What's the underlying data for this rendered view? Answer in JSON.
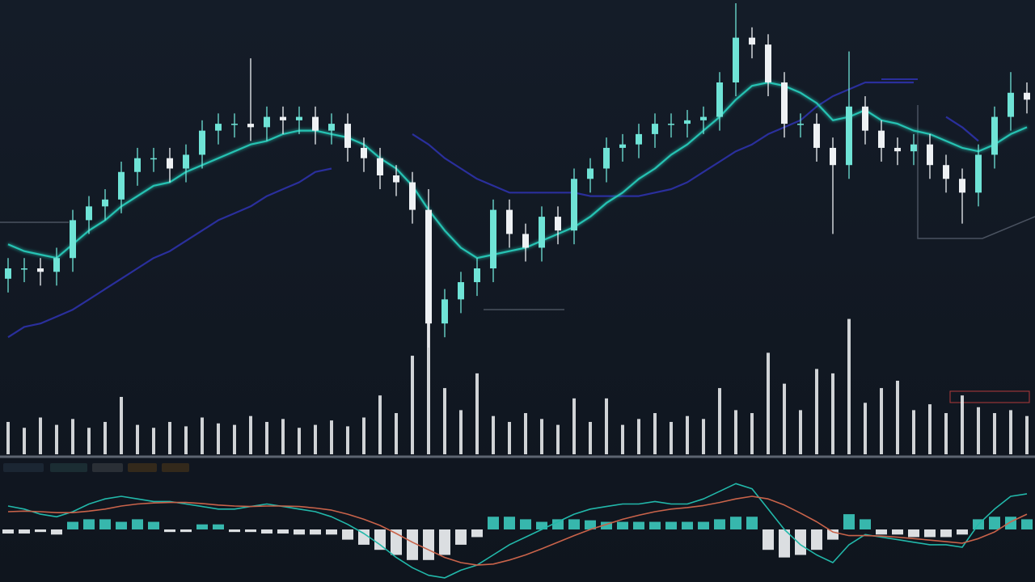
{
  "chart_data": {
    "type": "candlestick",
    "categories": [
      null,
      null,
      null,
      null,
      null,
      null,
      null,
      null,
      null,
      null,
      null,
      null,
      null,
      null,
      null,
      null,
      null,
      null,
      null,
      null,
      null,
      null,
      null,
      null,
      null,
      null,
      null,
      null,
      null,
      null,
      null,
      null,
      null,
      null,
      null,
      null,
      null,
      null,
      null,
      null,
      null,
      null,
      null,
      null,
      null,
      null,
      null,
      null,
      null,
      null,
      null,
      null,
      null,
      null,
      null,
      null,
      null,
      null,
      null,
      null,
      null,
      null,
      null,
      null
    ],
    "open": [
      20,
      23,
      23,
      22,
      26,
      37,
      41,
      43,
      51,
      55,
      55,
      52,
      56,
      63,
      65,
      65,
      64,
      67,
      66,
      67,
      63,
      65,
      58,
      55,
      50,
      48,
      40,
      7,
      14,
      19,
      23,
      40,
      33,
      29,
      38,
      34,
      49,
      52,
      58,
      59,
      62,
      65,
      65,
      66,
      67,
      77,
      90,
      88,
      77,
      65,
      65,
      58,
      53,
      70,
      63,
      58,
      57,
      59,
      53,
      49,
      45,
      56,
      67,
      74
    ],
    "high": [
      26,
      26,
      26,
      29,
      40,
      44,
      46,
      54,
      58,
      58,
      58,
      59,
      66,
      68,
      68,
      84,
      70,
      70,
      70,
      70,
      68,
      68,
      61,
      58,
      53,
      51,
      46,
      17,
      22,
      26,
      43,
      43,
      36,
      41,
      41,
      52,
      55,
      61,
      62,
      65,
      68,
      68,
      69,
      70,
      80,
      100,
      93,
      91,
      80,
      68,
      68,
      61,
      86,
      73,
      66,
      61,
      62,
      62,
      56,
      52,
      59,
      70,
      80,
      77
    ],
    "low": [
      16,
      19,
      18,
      18,
      22,
      33,
      37,
      39,
      47,
      51,
      48,
      48,
      52,
      59,
      61,
      60,
      60,
      62,
      62,
      59,
      59,
      54,
      51,
      46,
      44,
      36,
      0,
      3,
      10,
      15,
      19,
      29,
      25,
      25,
      30,
      30,
      45,
      48,
      54,
      55,
      58,
      61,
      61,
      62,
      63,
      73,
      84,
      73,
      61,
      61,
      54,
      33,
      49,
      59,
      54,
      53,
      53,
      49,
      45,
      36,
      41,
      52,
      63,
      68
    ],
    "close": [
      23,
      23,
      22,
      26,
      37,
      41,
      43,
      51,
      55,
      55,
      52,
      56,
      63,
      65,
      65,
      64,
      67,
      66,
      67,
      63,
      65,
      58,
      55,
      50,
      48,
      40,
      7,
      14,
      19,
      23,
      40,
      33,
      29,
      38,
      34,
      49,
      52,
      58,
      59,
      62,
      65,
      65,
      66,
      67,
      77,
      90,
      88,
      77,
      65,
      65,
      58,
      53,
      70,
      63,
      58,
      57,
      59,
      53,
      49,
      45,
      56,
      67,
      74,
      72
    ],
    "up_color": "#6fe3d6",
    "down_color": "#eef1f4",
    "ylim": [
      0,
      100
    ],
    "lines": [
      {
        "color": "#25c3b3",
        "values": [
          30,
          28,
          27,
          26,
          30,
          34,
          37,
          41,
          44,
          47,
          48,
          51,
          53,
          55,
          57,
          59,
          60,
          62,
          63,
          63,
          62,
          61,
          59,
          55,
          52,
          47,
          40,
          34,
          29,
          26,
          27,
          28,
          29,
          31,
          33,
          35,
          38,
          42,
          45,
          49,
          52,
          56,
          59,
          63,
          67,
          72,
          76,
          77,
          76,
          74,
          71,
          66,
          67,
          69,
          66,
          65,
          63,
          62,
          60,
          58,
          57,
          59,
          62,
          64
        ]
      },
      {
        "color": "#2a2f9c",
        "values": [
          3,
          6,
          7,
          9,
          11,
          14,
          17,
          20,
          23,
          26,
          28,
          31,
          34,
          37,
          39,
          41,
          44,
          46,
          48,
          51,
          52,
          null,
          null,
          null,
          null,
          62,
          59,
          55,
          52,
          49,
          47,
          45,
          45,
          45,
          45,
          45,
          44,
          44,
          44,
          44,
          45,
          46,
          48,
          51,
          54,
          57,
          59,
          62,
          64,
          66,
          70,
          73,
          75,
          77,
          77,
          77,
          77,
          null,
          67,
          64,
          60,
          null,
          null,
          null
        ]
      }
    ],
    "volume": {
      "color": "#f2f4f6",
      "values": [
        22,
        18,
        25,
        20,
        24,
        18,
        22,
        39,
        20,
        18,
        22,
        19,
        25,
        21,
        20,
        26,
        22,
        24,
        18,
        20,
        23,
        19,
        25,
        40,
        28,
        67,
        92,
        45,
        30,
        55,
        26,
        22,
        28,
        24,
        20,
        38,
        22,
        38,
        20,
        24,
        28,
        22,
        26,
        24,
        45,
        30,
        28,
        69,
        48,
        30,
        58,
        55,
        92,
        35,
        45,
        50,
        30,
        34,
        28,
        40,
        32,
        28,
        30,
        26
      ],
      "ylim": [
        0,
        100
      ]
    },
    "macd": {
      "ylim": [
        -10,
        10
      ],
      "histogram": {
        "up_color": "#3cc9bd",
        "down_color": "#f2f4f6",
        "values": [
          -0.8,
          -0.8,
          -0.5,
          -1,
          1.5,
          2,
          2,
          1.5,
          2,
          1.5,
          -0.5,
          -0.5,
          1,
          1,
          -0.5,
          -0.5,
          -0.8,
          -0.8,
          -1,
          -1,
          -1,
          -2,
          -3,
          -4,
          -5,
          -6,
          -6,
          -5,
          -3,
          -1.5,
          2.5,
          2.5,
          2,
          1.5,
          2,
          2,
          1.8,
          1.5,
          1.5,
          1.5,
          1.5,
          1.5,
          1.5,
          1.5,
          2,
          2.5,
          2.5,
          -4,
          -5.5,
          -5,
          -4,
          -2,
          3,
          2,
          -1,
          -1,
          -1.5,
          -1.5,
          -1.5,
          -1,
          2,
          2.5,
          2.5,
          2
        ]
      },
      "lines": [
        {
          "color": "#22b8aa",
          "values": [
            4.6,
            4,
            3,
            2.5,
            3.5,
            5,
            6,
            6.5,
            6,
            5.5,
            5.5,
            5,
            4.5,
            4,
            4,
            4.5,
            5,
            4.5,
            4,
            3.5,
            2.5,
            1,
            -0.8,
            -3,
            -5.5,
            -7.5,
            -9,
            -9.5,
            -8,
            -7,
            -5,
            -3,
            -1.5,
            0,
            1.5,
            3,
            4,
            4.5,
            5,
            5,
            5.5,
            5,
            5,
            6,
            7.5,
            9,
            8,
            4,
            0,
            -3,
            -5,
            -6.5,
            -3,
            -1,
            -1.5,
            -2,
            -2.5,
            -3,
            -3,
            -3.5,
            1,
            4,
            6.5,
            7
          ]
        },
        {
          "color": "#c9634a",
          "values": [
            3.5,
            3.6,
            3.5,
            3.3,
            3.3,
            3.6,
            4,
            4.6,
            5,
            5.2,
            5.3,
            5.3,
            5.1,
            4.8,
            4.6,
            4.5,
            4.6,
            4.6,
            4.5,
            4.2,
            3.8,
            3,
            2,
            0.8,
            -0.8,
            -2.5,
            -4,
            -5.5,
            -6.5,
            -7,
            -6.8,
            -6,
            -5,
            -3.8,
            -2.5,
            -1.2,
            0,
            1,
            2,
            2.8,
            3.5,
            4,
            4.3,
            4.7,
            5.3,
            6,
            6.5,
            6,
            4.8,
            3.2,
            1.5,
            -0.5,
            -1.2,
            -1.2,
            -1.3,
            -1.5,
            -1.8,
            -2.1,
            -2.4,
            -2.7,
            -1.8,
            -0.5,
            1.5,
            3
          ]
        }
      ]
    }
  }
}
